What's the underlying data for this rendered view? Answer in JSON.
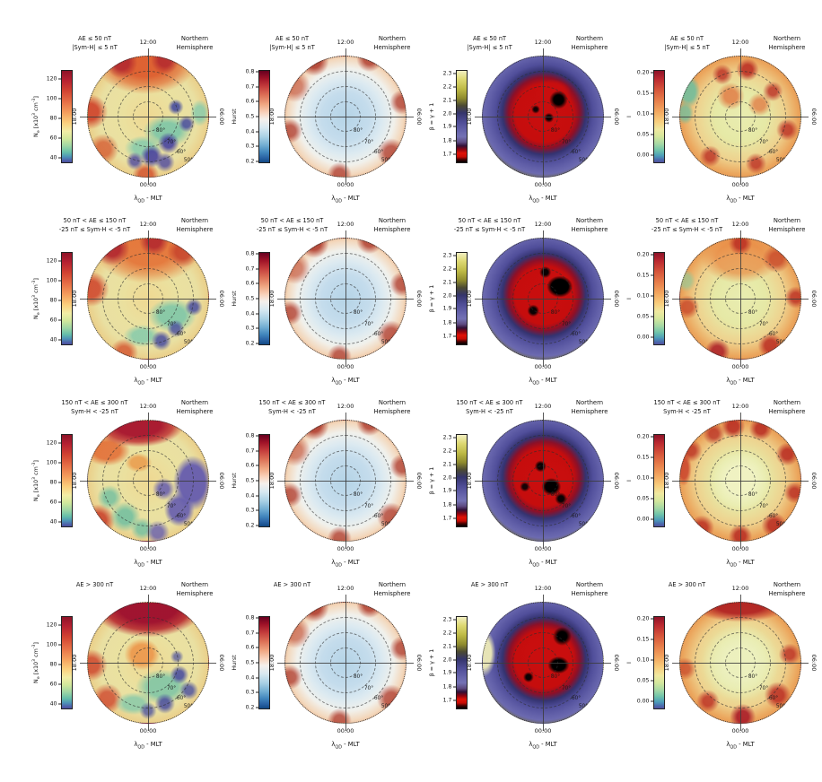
{
  "figure": {
    "hemisphere": [
      "Northern",
      "Hemisphere"
    ]
  },
  "chart_data": {
    "type": "heatmap",
    "projection": "polar",
    "title": "Polar maps of ionospheric quantities vs quasi-dipole latitude and MLT, Northern Hemisphere, binned by geomagnetic activity level",
    "hemisphere": [
      "Northern",
      "Hemisphere"
    ],
    "rows": [
      {
        "condition": [
          "AE ≤ 50 nT",
          "|Sym-H| ≤ 5 nT"
        ]
      },
      {
        "condition": [
          "50 nT < AE ≤ 150 nT",
          "-25 nT ≤ Sym-H < -5 nT"
        ]
      },
      {
        "condition": [
          "150 nT < AE ≤ 300 nT",
          "Sym-H < -25 nT"
        ]
      },
      {
        "condition": [
          "AE > 300 nT"
        ]
      }
    ],
    "columns": [
      {
        "id": "ne",
        "label_parts": [
          "N",
          {
            "sub": "e"
          },
          " [x10",
          {
            "sup": "3"
          },
          " cm",
          {
            "sup": "-3"
          },
          "]"
        ],
        "ticks": [
          "120",
          "100",
          "80",
          "60",
          "40"
        ],
        "tick_pos": [
          10,
          31,
          52,
          73,
          94
        ],
        "colorbar_range": [
          35,
          130
        ],
        "palette_low_to_high": [
          "#4c4f9e",
          "#66bfa9",
          "#d2e89c",
          "#fbd07e",
          "#e77047",
          "#8e1328"
        ]
      },
      {
        "id": "hurst",
        "label_parts": [
          "Hurst"
        ],
        "ticks": [
          "0.8",
          "0.7",
          "0.6",
          "0.5",
          "0.4",
          "0.3",
          "0.2"
        ],
        "tick_pos": [
          2,
          18,
          34,
          50,
          66,
          82,
          98
        ],
        "colorbar_range": [
          0.2,
          0.8
        ],
        "palette_low_to_high": [
          "#124984",
          "#74afd3",
          "#f5f0ec",
          "#f0a884",
          "#c43c3c",
          "#67001f"
        ]
      },
      {
        "id": "beta",
        "label_parts": [
          "β = γ + 1"
        ],
        "ticks": [
          "2.3",
          "2.2",
          "2.1",
          "2.0",
          "1.9",
          "1.8",
          "1.7"
        ],
        "tick_pos": [
          4,
          18,
          33,
          47,
          61,
          76,
          90
        ],
        "colorbar_range": [
          1.63,
          2.33
        ],
        "palette_low_to_high": [
          "#000000",
          "#e01206",
          "#310f36",
          "#6765ac",
          "#35356b",
          "#8f8b2e",
          "#ded974",
          "#f2efc2"
        ]
      },
      {
        "id": "intermittency",
        "label_parts": [
          "I"
        ],
        "ticks": [
          "0.20",
          "0.15",
          "0.10",
          "0.05",
          "0.00"
        ],
        "tick_pos": [
          3,
          25,
          47,
          69,
          91
        ],
        "colorbar_range": [
          0.0,
          0.2
        ],
        "palette_low_to_high": [
          "#54519f",
          "#6ec3ab",
          "#d4e79d",
          "#f8cd7d",
          "#e67d4a",
          "#8e1328"
        ]
      }
    ],
    "polar_axes": {
      "mlt_top": "12:00",
      "mlt_left": "18:00",
      "mlt_right": "06:00",
      "mlt_bottom": "00:00",
      "lat_labels": [
        "80°",
        "70°",
        "60°",
        "50°"
      ],
      "lat_rings_deg": [
        80,
        70,
        60
      ],
      "outer_boundary_deg": 50,
      "xlabel_parts": [
        "λ",
        {
          "sub": "QD"
        },
        " - MLT"
      ]
    },
    "panel_notes": [
      "Ne: high (orange/red) on dayside, patchy low-Ne blue blobs 50–70° in night/dawn sector",
      "Hurst: ~0.35–0.45 (blue) poleward of ~70°, ~0.6–0.8 (red) equatorward rim",
      "β: red core (<1.7, black spots) poleward of 70°, blue-purple ~2.0 band, olive ~2.2 rim",
      "I: ~0.1–0.17 orange/red ring 50–75°, green-teal low-I patch at dusk-dawn edge, pale center",
      "Ne: broad dayside enhancement, teal/green night-dawn ring with few blue blobs, red rim at dusk",
      "Hurst: same pattern, blue polar cap slightly larger",
      "β: red core with large black blob dawnside of pole, blue band, olive rim",
      "I: mottled orange ring, pale yellow-green center, red rim spots",
      "Ne: dark-red noon sector, large slate-purple depletion 50–75° on dawn side, teal streaks nightside",
      "Hurst: blue cap, red rim slightly thinner",
      "β: red core expanded with big black patches right of pole, blue band, olive rim",
      "I: pale center, strongly mottled orange/red ring with many dark-red rim blobs",
      "Ne: dark-red cap 09–15 MLT, orange center, green ring with blue blobs in night/dawn 50–65°",
      "Hurst: light-blue cap, red rim widest at noon",
      "β: thick blue band, red core toward noon/dawn with black spots, thin olive rim",
      "I: large pale yellow-green center, orange ring, dark-red arcs at noon and midnight rims"
    ]
  }
}
